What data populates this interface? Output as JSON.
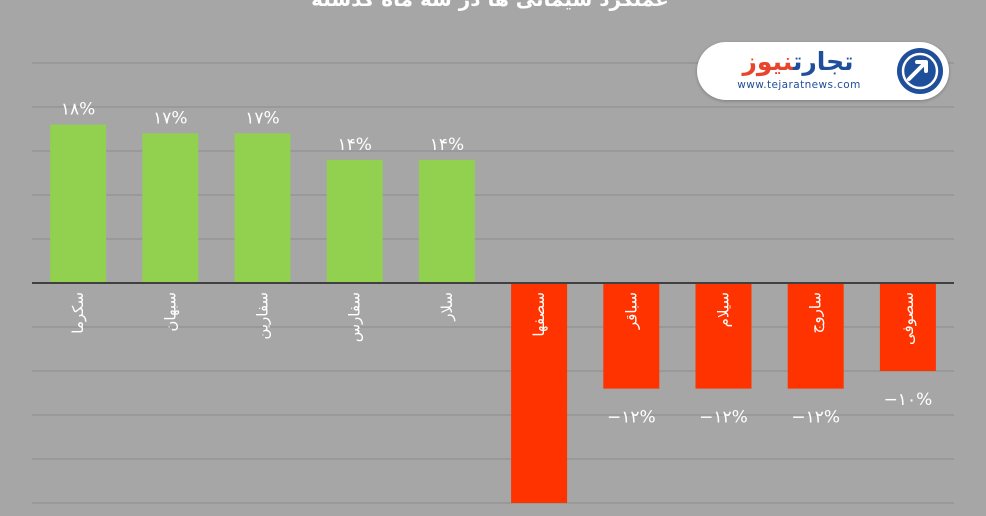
{
  "title": "عملکرد سیمانی ها در سه ماه گذشته",
  "logo": {
    "name_part1": "تجارت",
    "name_part2": "نیوز",
    "url": "www.tejaratnews.com",
    "emblem": "arrow-circle-emblem"
  },
  "colors": {
    "background": "#a6a6a6",
    "positive": "#92d050",
    "negative": "#ff3300",
    "grid": "#8c8c8c",
    "axis": "#404040",
    "text": "#ffffff"
  },
  "chart_data": {
    "type": "bar",
    "title": "عملکرد سیمانی ها در سه ماه گذشته",
    "xlabel": "",
    "ylabel": "",
    "unit": "%",
    "ylim": [
      -25,
      25
    ],
    "grid": true,
    "categories": [
      "سکرما",
      "سبهان",
      "سفارین",
      "سفارس",
      "سلار",
      "سصفها",
      "سباقر",
      "سیلام",
      "ساروج",
      "سصوفی"
    ],
    "values": [
      18,
      17,
      17,
      14,
      14,
      -25,
      -12,
      -12,
      -12,
      -10
    ],
    "data_labels": [
      "۱۸%",
      "۱۷%",
      "۱۷%",
      "۱۴%",
      "۱۴%",
      "",
      "−۱۲%",
      "−۱۲%",
      "−۱۲%",
      "−۱۰%"
    ]
  }
}
